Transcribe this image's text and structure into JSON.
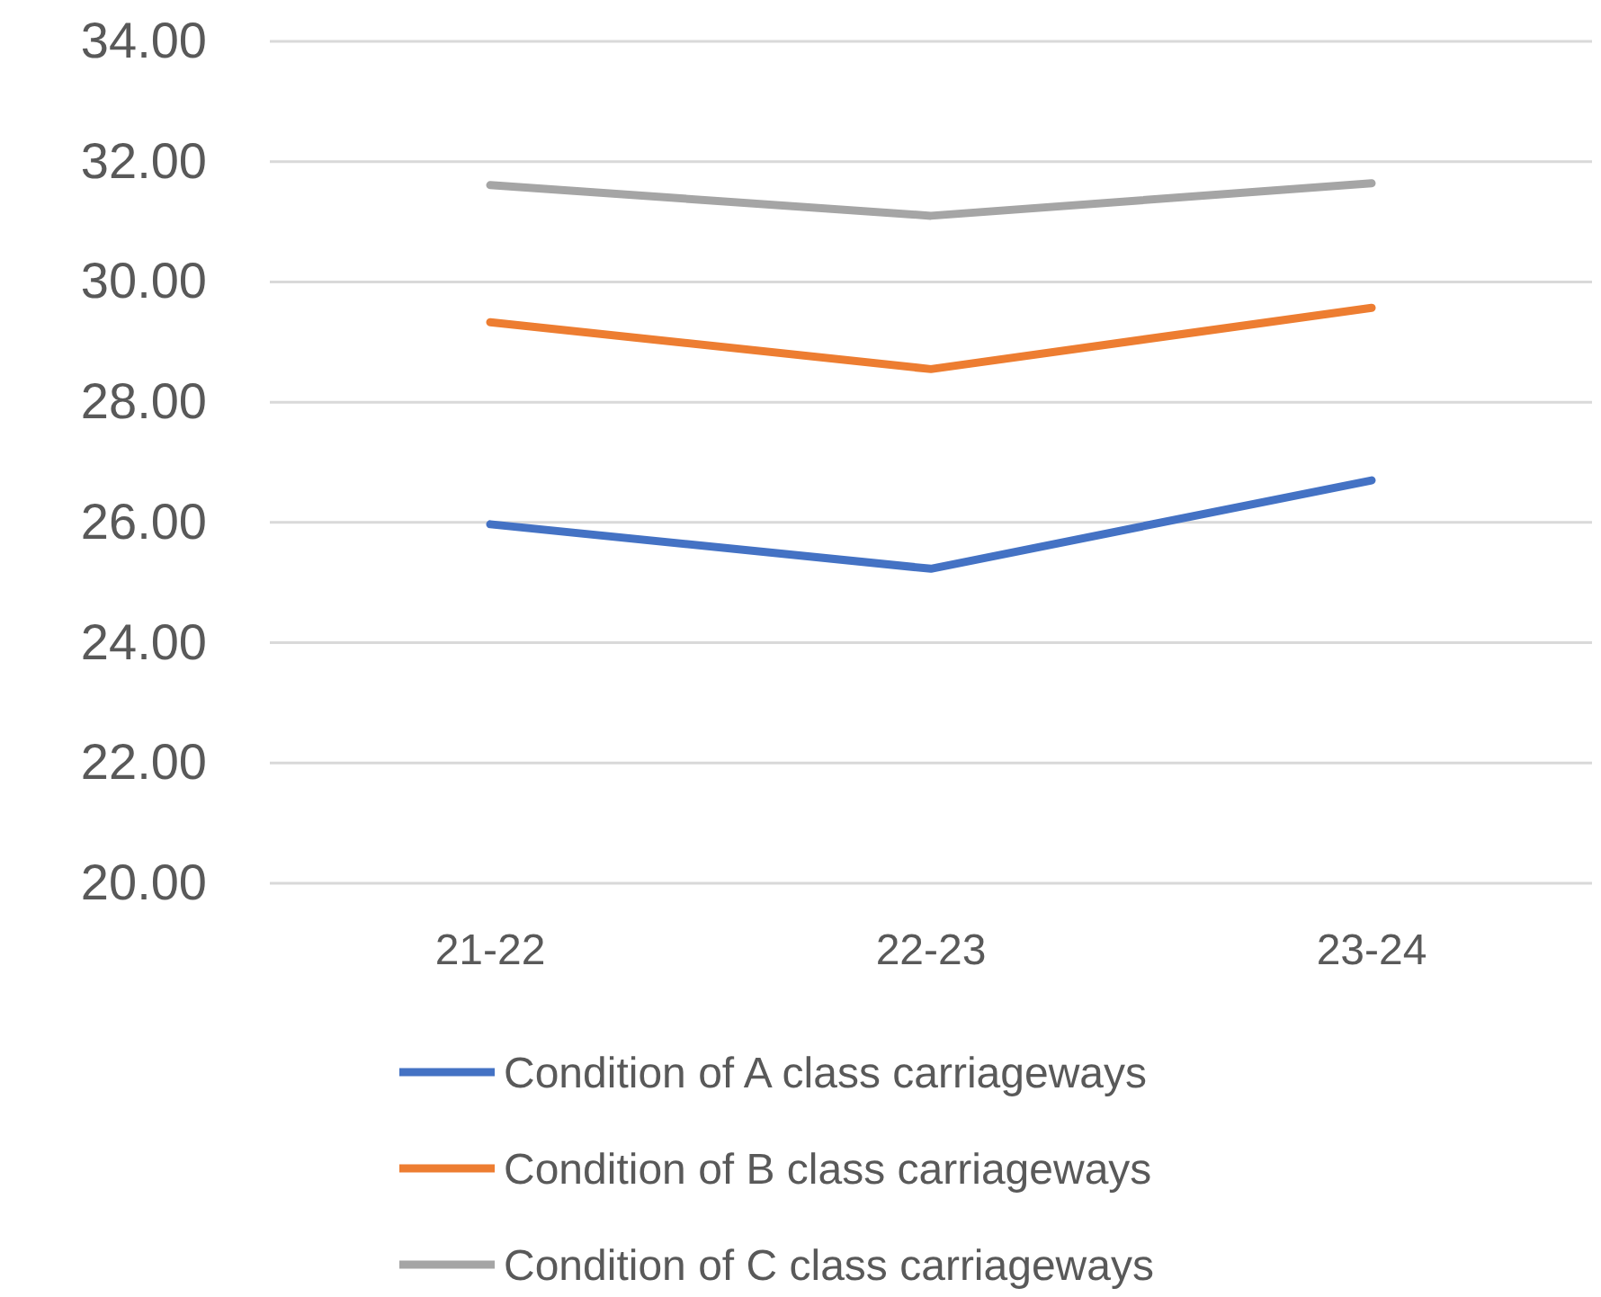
{
  "chart_data": {
    "type": "line",
    "categories": [
      "21-22",
      "22-23",
      "23-24"
    ],
    "series": [
      {
        "name": "Condition of A class carriageways",
        "color": "#4472c4",
        "values": [
          25.97,
          25.23,
          26.7
        ]
      },
      {
        "name": "Condition of B class carriageways",
        "color": "#ed7d31",
        "values": [
          29.33,
          28.55,
          29.57
        ]
      },
      {
        "name": "Condition of C class carriageways",
        "color": "#a5a5a5",
        "values": [
          31.61,
          31.1,
          31.64
        ]
      }
    ],
    "ylim": [
      20,
      34
    ],
    "yticks": [
      {
        "value": 20,
        "label": "20.00"
      },
      {
        "value": 22,
        "label": "22.00"
      },
      {
        "value": 24,
        "label": "24.00"
      },
      {
        "value": 26,
        "label": "26.00"
      },
      {
        "value": 28,
        "label": "28.00"
      },
      {
        "value": 30,
        "label": "30.00"
      },
      {
        "value": 32,
        "label": "32.00"
      },
      {
        "value": 34,
        "label": "34.00"
      }
    ],
    "grid": "y",
    "legend": "bottom",
    "marker": "none",
    "line_style": "solid"
  }
}
